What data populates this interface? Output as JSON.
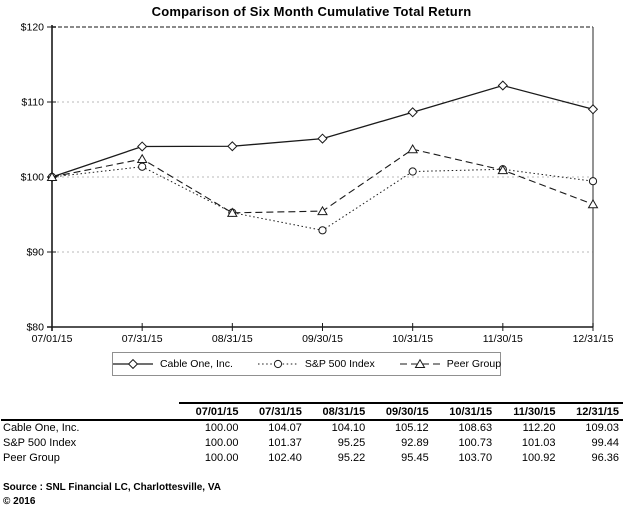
{
  "chart_data": {
    "type": "line",
    "title": "Comparison of Six Month Cumulative Total Return",
    "xlabel": "",
    "ylabel": "",
    "ylim": [
      80,
      120
    ],
    "grid": "horizontal-dotted",
    "legend_position": "bottom",
    "categories": [
      "07/01/15",
      "07/31/15",
      "08/31/15",
      "09/30/15",
      "10/31/15",
      "11/30/15",
      "12/31/15"
    ],
    "y_ticks": [
      {
        "value": 120,
        "label": "$120"
      },
      {
        "value": 110,
        "label": "$110"
      },
      {
        "value": 100,
        "label": "$100"
      },
      {
        "value": 90,
        "label": "$90"
      },
      {
        "value": 80,
        "label": "$80"
      }
    ],
    "series": [
      {
        "name": "Cable One, Inc.",
        "marker": "diamond",
        "dash": "solid",
        "values": [
          100.0,
          104.07,
          104.1,
          105.12,
          108.63,
          112.2,
          109.03
        ]
      },
      {
        "name": "S&P 500 Index",
        "marker": "circle",
        "dash": "dotted",
        "values": [
          100.0,
          101.37,
          95.25,
          92.89,
          100.73,
          101.03,
          99.44
        ]
      },
      {
        "name": "Peer Group",
        "marker": "triangle",
        "dash": "dashed",
        "values": [
          100.0,
          102.4,
          95.22,
          95.45,
          103.7,
          100.92,
          96.36
        ]
      }
    ],
    "line_color": "#1a1a1a"
  },
  "table": {
    "headers": [
      "",
      "07/01/15",
      "07/31/15",
      "08/31/15",
      "09/30/15",
      "10/31/15",
      "11/30/15",
      "12/31/15"
    ],
    "rows": [
      {
        "label": "Cable One, Inc.",
        "values": [
          "100.00",
          "104.07",
          "104.10",
          "105.12",
          "108.63",
          "112.20",
          "109.03"
        ]
      },
      {
        "label": "S&P 500 Index",
        "values": [
          "100.00",
          "101.37",
          "95.25",
          "92.89",
          "100.73",
          "101.03",
          "99.44"
        ]
      },
      {
        "label": "Peer Group",
        "values": [
          "100.00",
          "102.40",
          "95.22",
          "95.45",
          "103.70",
          "100.92",
          "96.36"
        ]
      }
    ]
  },
  "footer": {
    "source": "Source : SNL Financial LC, Charlottesville, VA",
    "copyright": "© 2016"
  }
}
